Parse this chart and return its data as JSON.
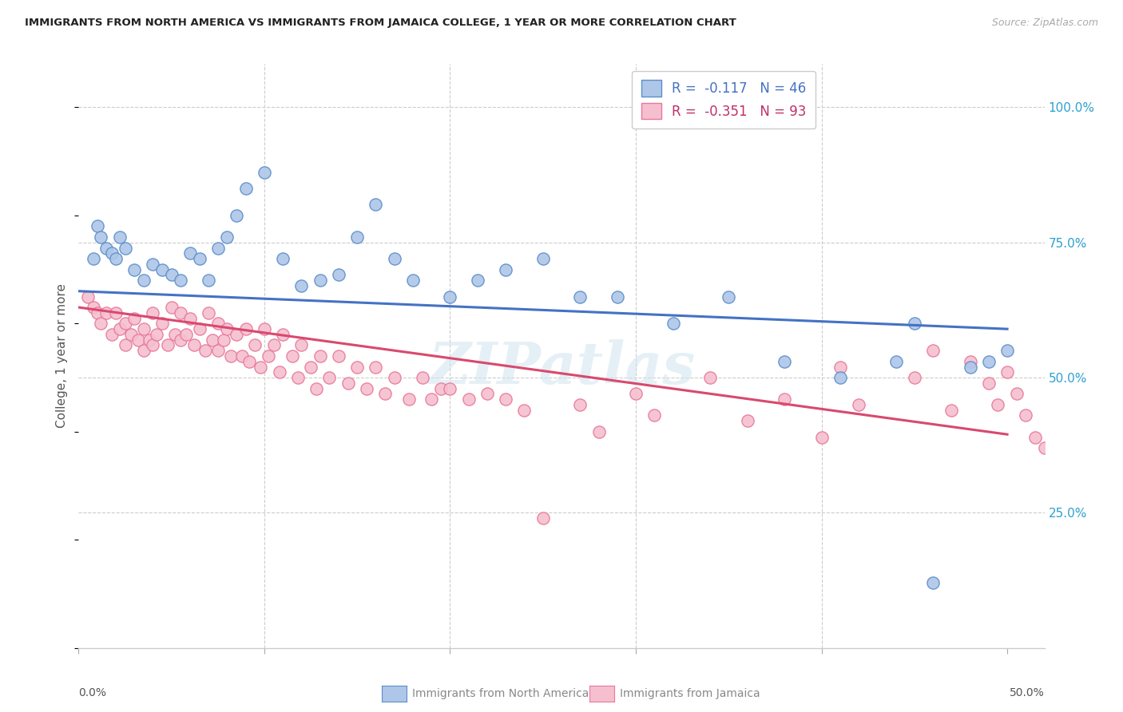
{
  "title": "IMMIGRANTS FROM NORTH AMERICA VS IMMIGRANTS FROM JAMAICA COLLEGE, 1 YEAR OR MORE CORRELATION CHART",
  "source": "Source: ZipAtlas.com",
  "ylabel": "College, 1 year or more",
  "xlim": [
    0.0,
    0.52
  ],
  "ylim": [
    0.0,
    1.08
  ],
  "ytick_values": [
    0.0,
    0.25,
    0.5,
    0.75,
    1.0
  ],
  "ytick_labels": [
    "",
    "25.0%",
    "50.0%",
    "75.0%",
    "100.0%"
  ],
  "blue_color": "#aec6e8",
  "blue_edge_color": "#5b8fc9",
  "pink_color": "#f5bfcf",
  "pink_edge_color": "#e8799a",
  "blue_line_color": "#4472c4",
  "pink_line_color": "#d9496e",
  "right_axis_color": "#2ca0d0",
  "legend_blue_label": "R =  -0.117   N = 46",
  "legend_pink_label": "R =  -0.351   N = 93",
  "legend_xlabel": [
    "Immigrants from North America",
    "Immigrants from Jamaica"
  ],
  "watermark": "ZIPatlas",
  "blue_scatter_x": [
    0.008,
    0.01,
    0.012,
    0.015,
    0.018,
    0.02,
    0.022,
    0.025,
    0.03,
    0.035,
    0.04,
    0.045,
    0.05,
    0.055,
    0.06,
    0.065,
    0.07,
    0.075,
    0.08,
    0.085,
    0.09,
    0.1,
    0.11,
    0.12,
    0.13,
    0.14,
    0.15,
    0.16,
    0.17,
    0.18,
    0.2,
    0.215,
    0.23,
    0.25,
    0.27,
    0.29,
    0.32,
    0.35,
    0.38,
    0.41,
    0.44,
    0.45,
    0.46,
    0.48,
    0.49,
    0.5
  ],
  "blue_scatter_y": [
    0.72,
    0.78,
    0.76,
    0.74,
    0.73,
    0.72,
    0.76,
    0.74,
    0.7,
    0.68,
    0.71,
    0.7,
    0.69,
    0.68,
    0.73,
    0.72,
    0.68,
    0.74,
    0.76,
    0.8,
    0.85,
    0.88,
    0.72,
    0.67,
    0.68,
    0.69,
    0.76,
    0.82,
    0.72,
    0.68,
    0.65,
    0.68,
    0.7,
    0.72,
    0.65,
    0.65,
    0.6,
    0.65,
    0.53,
    0.5,
    0.53,
    0.6,
    0.12,
    0.52,
    0.53,
    0.55
  ],
  "pink_scatter_x": [
    0.005,
    0.008,
    0.01,
    0.012,
    0.015,
    0.018,
    0.02,
    0.022,
    0.025,
    0.025,
    0.028,
    0.03,
    0.032,
    0.035,
    0.035,
    0.038,
    0.04,
    0.04,
    0.042,
    0.045,
    0.048,
    0.05,
    0.052,
    0.055,
    0.055,
    0.058,
    0.06,
    0.062,
    0.065,
    0.068,
    0.07,
    0.072,
    0.075,
    0.075,
    0.078,
    0.08,
    0.082,
    0.085,
    0.088,
    0.09,
    0.092,
    0.095,
    0.098,
    0.1,
    0.102,
    0.105,
    0.108,
    0.11,
    0.115,
    0.118,
    0.12,
    0.125,
    0.128,
    0.13,
    0.135,
    0.14,
    0.145,
    0.15,
    0.155,
    0.16,
    0.165,
    0.17,
    0.178,
    0.185,
    0.19,
    0.195,
    0.2,
    0.21,
    0.22,
    0.23,
    0.24,
    0.25,
    0.27,
    0.28,
    0.3,
    0.31,
    0.34,
    0.36,
    0.38,
    0.4,
    0.41,
    0.42,
    0.45,
    0.46,
    0.47,
    0.48,
    0.49,
    0.495,
    0.5,
    0.505,
    0.51,
    0.515,
    0.52
  ],
  "pink_scatter_y": [
    0.65,
    0.63,
    0.62,
    0.6,
    0.62,
    0.58,
    0.62,
    0.59,
    0.6,
    0.56,
    0.58,
    0.61,
    0.57,
    0.59,
    0.55,
    0.57,
    0.62,
    0.56,
    0.58,
    0.6,
    0.56,
    0.63,
    0.58,
    0.62,
    0.57,
    0.58,
    0.61,
    0.56,
    0.59,
    0.55,
    0.62,
    0.57,
    0.6,
    0.55,
    0.57,
    0.59,
    0.54,
    0.58,
    0.54,
    0.59,
    0.53,
    0.56,
    0.52,
    0.59,
    0.54,
    0.56,
    0.51,
    0.58,
    0.54,
    0.5,
    0.56,
    0.52,
    0.48,
    0.54,
    0.5,
    0.54,
    0.49,
    0.52,
    0.48,
    0.52,
    0.47,
    0.5,
    0.46,
    0.5,
    0.46,
    0.48,
    0.48,
    0.46,
    0.47,
    0.46,
    0.44,
    0.24,
    0.45,
    0.4,
    0.47,
    0.43,
    0.5,
    0.42,
    0.46,
    0.39,
    0.52,
    0.45,
    0.5,
    0.55,
    0.44,
    0.53,
    0.49,
    0.45,
    0.51,
    0.47,
    0.43,
    0.39,
    0.37
  ],
  "blue_line_x": [
    0.0,
    0.5
  ],
  "blue_line_y": [
    0.66,
    0.59
  ],
  "pink_line_x": [
    0.0,
    0.5
  ],
  "pink_line_y": [
    0.63,
    0.395
  ]
}
